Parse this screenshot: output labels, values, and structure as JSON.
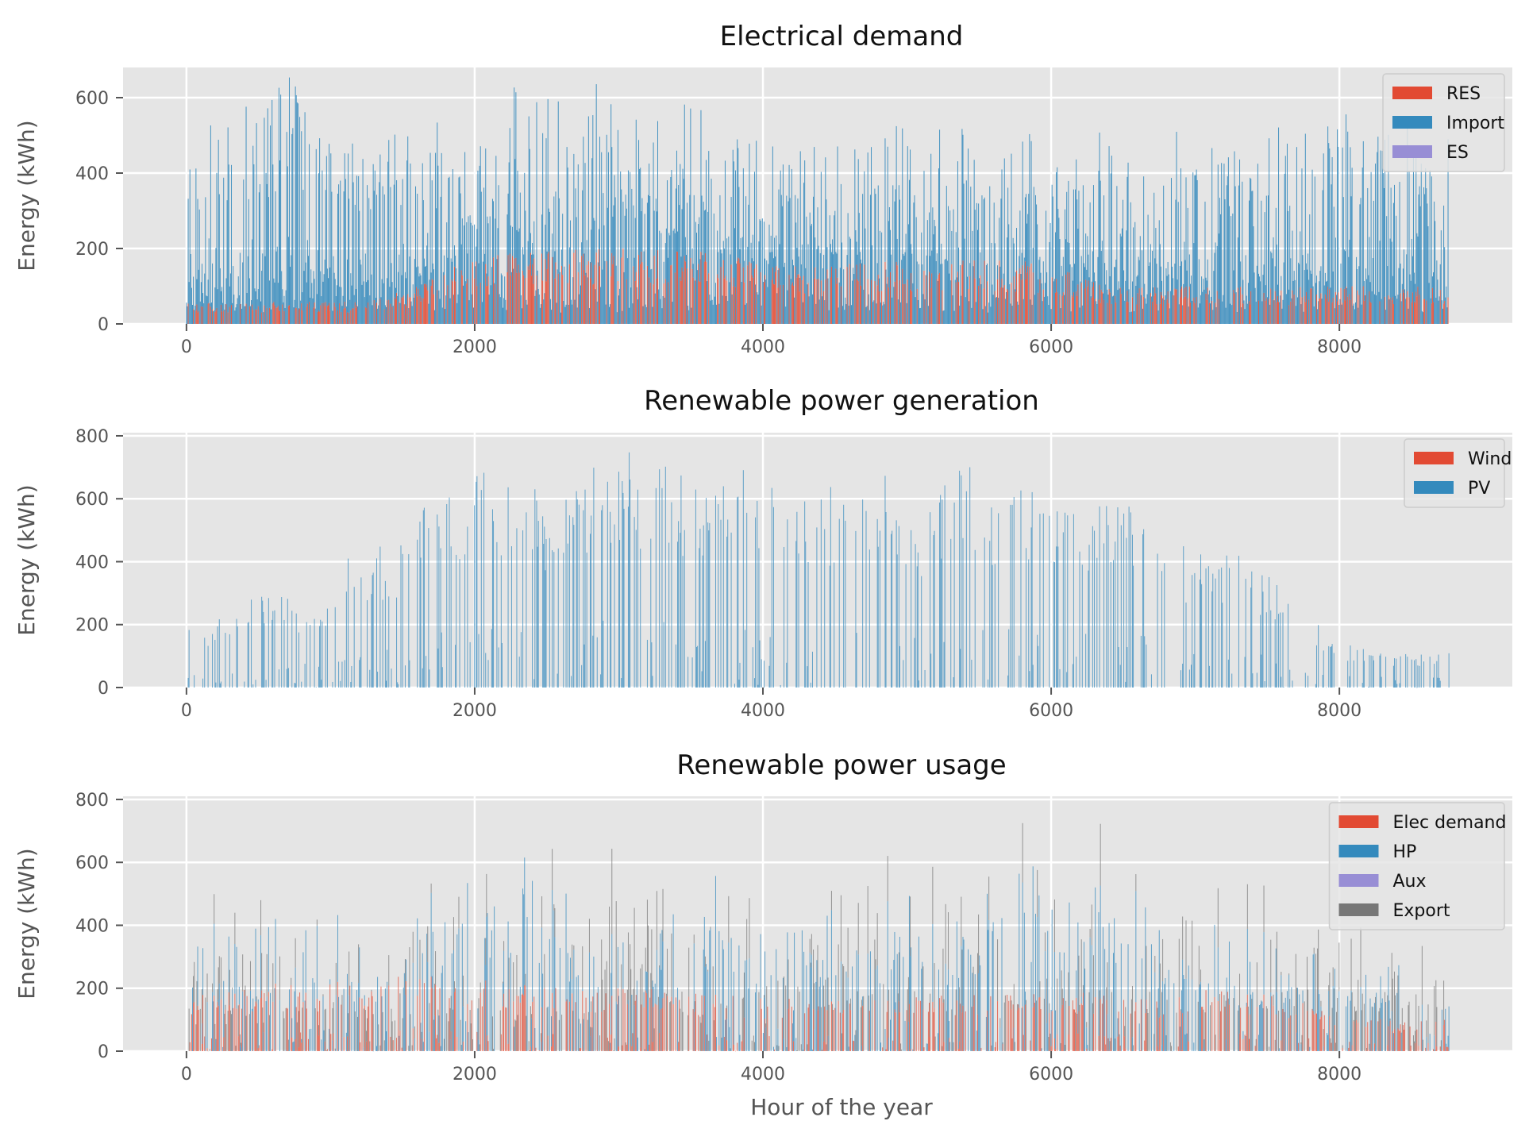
{
  "chart_data": [
    {
      "type": "bar",
      "title": "Electrical demand",
      "xlabel": "",
      "ylabel": "Energy (kWh)",
      "xlim": [
        -440,
        9200
      ],
      "ylim": [
        0,
        680
      ],
      "xticks": [
        0,
        2000,
        4000,
        6000,
        8000
      ],
      "yticks": [
        0,
        200,
        400,
        600
      ],
      "grid": true,
      "legend_position": "top-right",
      "stacked": true,
      "x_range": [
        0,
        8760
      ],
      "series": [
        {
          "name": "RES",
          "color": "#E24A33",
          "hours": [
            1200,
            1600,
            1800,
            2000,
            2200,
            2400,
            2600,
            2800,
            3000,
            3200,
            3400,
            3600,
            3800,
            4000,
            4200,
            4400,
            4600,
            4800,
            5000,
            5200,
            5400,
            5600,
            5800,
            6000,
            6200,
            6400
          ],
          "values": [
            60,
            100,
            140,
            180,
            200,
            200,
            200,
            200,
            200,
            200,
            200,
            200,
            180,
            170,
            160,
            160,
            160,
            170,
            170,
            170,
            170,
            170,
            170,
            150,
            130,
            100
          ]
        },
        {
          "name": "Import",
          "color": "#348ABD",
          "hours": [
            0,
            250,
            500,
            700,
            1000,
            1500,
            2000,
            2500,
            3000,
            3500,
            4000,
            4500,
            5000,
            5500,
            6000,
            6500,
            7000,
            7500,
            8000,
            8300,
            8700
          ],
          "values": [
            490,
            560,
            570,
            630,
            470,
            450,
            470,
            480,
            460,
            400,
            360,
            350,
            390,
            380,
            390,
            410,
            420,
            480,
            480,
            500,
            430
          ]
        },
        {
          "name": "ES",
          "color": "#988ED5",
          "hours": [],
          "values": []
        }
      ]
    },
    {
      "type": "bar",
      "title": "Renewable power generation",
      "xlabel": "",
      "ylabel": "Energy (kWh)",
      "xlim": [
        -440,
        9200
      ],
      "ylim": [
        0,
        810
      ],
      "xticks": [
        0,
        2000,
        4000,
        6000,
        8000
      ],
      "yticks": [
        0,
        200,
        400,
        600,
        800
      ],
      "grid": true,
      "legend_position": "top-right",
      "stacked": true,
      "x_range": [
        0,
        8760
      ],
      "series": [
        {
          "name": "Wind",
          "color": "#E24A33",
          "hours": [],
          "values": []
        },
        {
          "name": "PV",
          "color": "#348ABD",
          "hours": [
            80,
            500,
            620,
            950,
            1060,
            1500,
            1650,
            1850,
            2000,
            2200,
            2400,
            2600,
            2800,
            3000,
            3200,
            3400,
            3600,
            3800,
            4000,
            4200,
            4400,
            4600,
            4800,
            5000,
            5200,
            5400,
            5600,
            5800,
            6000,
            6200,
            6400,
            6600,
            6800,
            7000,
            7200,
            7400,
            7650,
            7950,
            8100,
            8400
          ],
          "values": [
            190,
            300,
            330,
            240,
            430,
            480,
            620,
            620,
            710,
            670,
            640,
            580,
            700,
            770,
            720,
            700,
            680,
            720,
            640,
            660,
            600,
            720,
            720,
            540,
            600,
            740,
            620,
            670,
            600,
            600,
            610,
            580,
            450,
            450,
            440,
            400,
            300,
            160,
            130,
            110
          ]
        }
      ]
    },
    {
      "type": "bar",
      "title": "Renewable power usage",
      "xlabel": "Hour of the year",
      "ylabel": "Energy (kWh)",
      "xlim": [
        -440,
        9200
      ],
      "ylim": [
        0,
        810
      ],
      "xticks": [
        0,
        2000,
        4000,
        6000,
        8000
      ],
      "yticks": [
        0,
        200,
        400,
        600,
        800
      ],
      "grid": true,
      "legend_position": "top-right",
      "stacked": true,
      "x_range": [
        0,
        8760
      ],
      "series": [
        {
          "name": "Elec demand",
          "color": "#E24A33",
          "hours": [
            80,
            500,
            620,
            950,
            1060,
            1500,
            1650,
            1850,
            2000,
            2200,
            2400,
            2600,
            2800,
            3000,
            3200,
            3400,
            3600,
            3800,
            4000,
            4200,
            4400,
            4600,
            4800,
            5000,
            5200,
            5400,
            5600,
            5800,
            6000,
            6200,
            6400,
            6600,
            6800,
            7000,
            7200,
            7400,
            7650,
            7950,
            8100,
            8400
          ],
          "values": [
            190,
            200,
            220,
            200,
            230,
            240,
            250,
            240,
            240,
            210,
            220,
            200,
            200,
            200,
            200,
            190,
            180,
            180,
            170,
            170,
            170,
            170,
            170,
            180,
            180,
            180,
            180,
            180,
            190,
            190,
            180,
            170,
            160,
            200,
            200,
            190,
            170,
            140,
            110,
            100
          ]
        },
        {
          "name": "HP",
          "color": "#348ABD",
          "hours": [
            1500,
            1650,
            2000,
            2200,
            2400,
            2600,
            2800,
            3000,
            3200,
            3400,
            3600,
            3800,
            4000,
            4200,
            4400,
            4600,
            4800,
            5000,
            5200,
            5400,
            5600,
            5800,
            6000,
            6200,
            6400,
            6600,
            6800,
            7000,
            7200,
            7400
          ],
          "values": [
            240,
            370,
            470,
            460,
            420,
            380,
            360,
            200,
            260,
            300,
            400,
            360,
            260,
            420,
            330,
            320,
            330,
            360,
            280,
            360,
            440,
            490,
            410,
            410,
            430,
            410,
            290,
            250,
            240,
            210
          ]
        },
        {
          "name": "Aux",
          "color": "#988ED5",
          "hours": [],
          "values": []
        },
        {
          "name": "Export",
          "color": "#777777",
          "hours": [
            2800,
            2900,
            3000,
            3100,
            3200,
            3400,
            3600,
            3800,
            4000,
            4600,
            4800,
            5300
          ],
          "values": [
            140,
            300,
            370,
            320,
            260,
            210,
            120,
            180,
            210,
            230,
            220,
            200
          ]
        }
      ]
    }
  ]
}
